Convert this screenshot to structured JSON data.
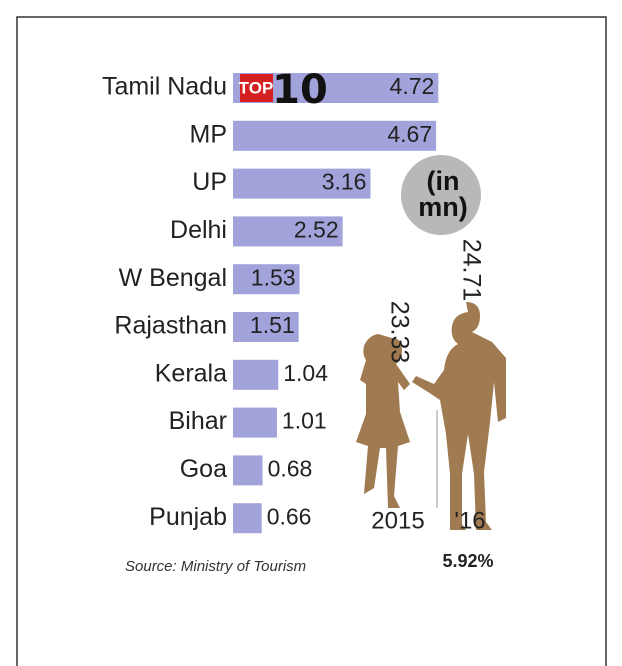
{
  "chart_data": [
    {
      "type": "bar",
      "badge": [
        "TOP",
        "10"
      ],
      "unit": "(in mn)",
      "categories": [
        "Tamil Nadu",
        "MP",
        "UP",
        "Delhi",
        "W Bengal",
        "Rajasthan",
        "Kerala",
        "Bihar",
        "Goa",
        "Punjab"
      ],
      "values": [
        4.72,
        4.67,
        3.16,
        2.52,
        1.53,
        1.51,
        1.04,
        1.01,
        0.68,
        0.66
      ],
      "color": "#a3a3dc",
      "source": "Source: Ministry of Tourism"
    },
    {
      "type": "pictogram",
      "categories": [
        "2015",
        "'16"
      ],
      "values": [
        23.33,
        24.71
      ],
      "color": "#a07a50",
      "annotations": [
        {
          "value": 5.92,
          "label": "5.92%"
        }
      ]
    }
  ]
}
